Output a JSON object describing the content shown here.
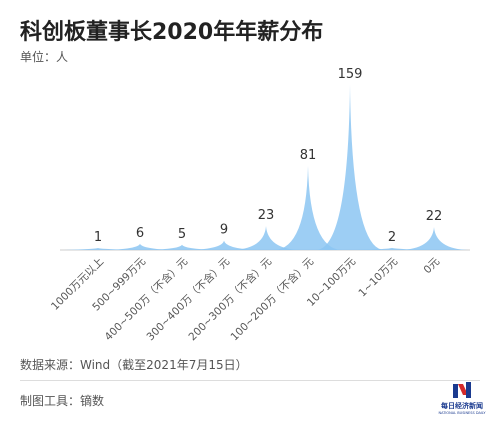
{
  "title": "科创板董事长2020年年薪分布",
  "unit_label": "单位：人",
  "source_label": "数据来源：Wind（截至2021年7月15日）",
  "tool_label": "制图工具：镝数",
  "logo": {
    "name": "每日经济新闻",
    "sub": "NATIONAL BUSINESS DAILY"
  },
  "colors": {
    "fill": "#8cc6f2",
    "label": "#333333",
    "axis": "#555555",
    "title": "#222222",
    "logo_blue": "#1a3a8f",
    "logo_red": "#d42a2a"
  },
  "chart_data": {
    "type": "area",
    "categories": [
      "1000万元以上",
      "500~999万元",
      "400~500万（不含）元",
      "300~400万（不含）元",
      "200~300万（不含）元",
      "100~200万（不含）元",
      "10~100万元",
      "1~10万元",
      "0元"
    ],
    "values": [
      1,
      6,
      5,
      9,
      23,
      81,
      159,
      2,
      22
    ],
    "data_labels": [
      "1",
      "6",
      "5",
      "9",
      "23",
      "81",
      "159",
      "2",
      "22"
    ],
    "grid": false,
    "legend": "none"
  }
}
